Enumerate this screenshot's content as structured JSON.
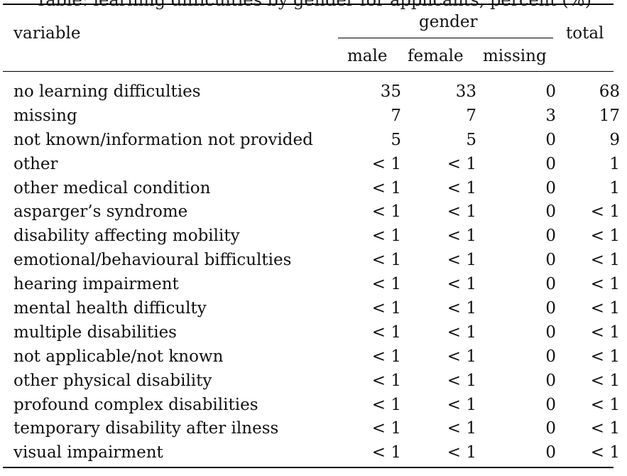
{
  "table": {
    "caption_fragment": "Table: learning difficulties by gender for applicants, percent (%)",
    "header": {
      "variable": "variable",
      "group": "gender",
      "total": "total",
      "subcolumns": [
        "male",
        "female",
        "missing"
      ]
    },
    "rows": [
      {
        "label": "no learning difficulties",
        "male": "35",
        "female": "33",
        "missing": "0",
        "total": "68"
      },
      {
        "label": "missing",
        "male": "7",
        "female": "7",
        "missing": "3",
        "total": "17"
      },
      {
        "label": "not known/information not provided",
        "male": "5",
        "female": "5",
        "missing": "0",
        "total": "9"
      },
      {
        "label": "other",
        "male": "< 1",
        "female": "< 1",
        "missing": "0",
        "total": "1"
      },
      {
        "label": "other medical condition",
        "male": "< 1",
        "female": "< 1",
        "missing": "0",
        "total": "1"
      },
      {
        "label": "asparger’s syndrome",
        "male": "< 1",
        "female": "< 1",
        "missing": "0",
        "total": "< 1"
      },
      {
        "label": "disability affecting mobility",
        "male": "< 1",
        "female": "< 1",
        "missing": "0",
        "total": "< 1"
      },
      {
        "label": "emotional/behavioural bifficulties",
        "male": "< 1",
        "female": "< 1",
        "missing": "0",
        "total": "< 1"
      },
      {
        "label": "hearing impairment",
        "male": "< 1",
        "female": "< 1",
        "missing": "0",
        "total": "< 1"
      },
      {
        "label": "mental health difficulty",
        "male": "< 1",
        "female": "< 1",
        "missing": "0",
        "total": "< 1"
      },
      {
        "label": "multiple disabilities",
        "male": "< 1",
        "female": "< 1",
        "missing": "0",
        "total": "< 1"
      },
      {
        "label": "not applicable/not known",
        "male": "< 1",
        "female": "< 1",
        "missing": "0",
        "total": "< 1"
      },
      {
        "label": "other physical disability",
        "male": "< 1",
        "female": "< 1",
        "missing": "0",
        "total": "< 1"
      },
      {
        "label": "profound complex disabilities",
        "male": "< 1",
        "female": "< 1",
        "missing": "0",
        "total": "< 1"
      },
      {
        "label": "temporary disability after ilness",
        "male": "< 1",
        "female": "< 1",
        "missing": "0",
        "total": "< 1"
      },
      {
        "label": "visual impairment",
        "male": "< 1",
        "female": "< 1",
        "missing": "0",
        "total": "< 1"
      }
    ]
  }
}
